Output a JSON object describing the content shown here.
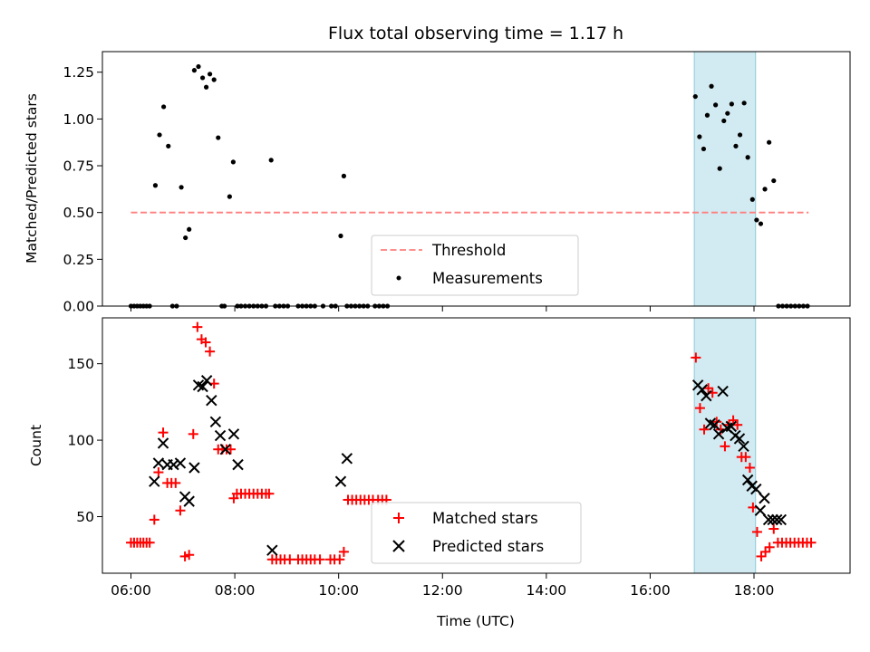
{
  "chart_data": [
    {
      "type": "scatter",
      "title": "Flux total observing time = 1.17 h",
      "ylabel": "Matched/Predicted stars",
      "xlabel": "",
      "xlim": [
        5.45,
        19.85
      ],
      "ylim": [
        0,
        1.36
      ],
      "yticks": [
        0.0,
        0.25,
        0.5,
        0.75,
        1.0,
        1.25
      ],
      "ytick_labels": [
        "0.00",
        "0.25",
        "0.50",
        "0.75",
        "1.00",
        "1.25"
      ],
      "highlight_span": [
        16.85,
        18.03
      ],
      "threshold": {
        "name": "Threshold",
        "value": 0.5,
        "x_range": [
          6.0,
          19.05
        ],
        "color": "#ff7f7f"
      },
      "legend": {
        "placement": "lower-center",
        "entries": [
          "Threshold",
          "Measurements"
        ]
      },
      "series": [
        {
          "name": "Measurements",
          "marker": "dot",
          "color": "#000000",
          "x": [
            6.0,
            6.06,
            6.12,
            6.18,
            6.24,
            6.3,
            6.36,
            6.47,
            6.55,
            6.63,
            6.72,
            6.8,
            6.88,
            6.97,
            7.05,
            7.12,
            7.22,
            7.3,
            7.38,
            7.45,
            7.52,
            7.6,
            7.68,
            7.75,
            7.8,
            7.9,
            7.97,
            8.05,
            8.12,
            8.2,
            8.28,
            8.36,
            8.44,
            8.52,
            8.6,
            8.7,
            8.78,
            8.86,
            8.94,
            9.02,
            9.22,
            9.3,
            9.38,
            9.46,
            9.54,
            9.7,
            9.86,
            9.94,
            10.04,
            10.1,
            10.16,
            10.24,
            10.32,
            10.4,
            10.48,
            10.56,
            10.7,
            10.78,
            10.86,
            10.94,
            16.87,
            16.95,
            17.03,
            17.1,
            17.18,
            17.26,
            17.34,
            17.42,
            17.49,
            17.57,
            17.65,
            17.73,
            17.81,
            17.88,
            17.97,
            18.05,
            18.13,
            18.21,
            18.29,
            18.38,
            18.47,
            18.55,
            18.63,
            18.71,
            18.79,
            18.87,
            18.95,
            19.03
          ],
          "y": [
            0,
            0,
            0,
            0,
            0,
            0,
            0,
            0.645,
            0.915,
            1.065,
            0.855,
            0,
            0,
            0.635,
            0.365,
            0.41,
            1.26,
            1.28,
            1.22,
            1.17,
            1.24,
            1.21,
            0.9,
            0,
            0,
            0.585,
            0.77,
            0,
            0,
            0,
            0,
            0,
            0,
            0,
            0,
            0.78,
            0,
            0,
            0,
            0,
            0,
            0,
            0,
            0,
            0,
            0,
            0,
            0,
            0.375,
            0.695,
            0,
            0,
            0,
            0,
            0,
            0,
            0,
            0,
            0,
            0,
            1.12,
            0.905,
            0.84,
            1.02,
            1.175,
            1.075,
            0.735,
            0.99,
            1.03,
            1.08,
            0.855,
            0.915,
            1.085,
            0.795,
            0.57,
            0.46,
            0.44,
            0.625,
            0.875,
            0.67,
            0,
            0,
            0,
            0,
            0,
            0,
            0,
            0
          ]
        }
      ]
    },
    {
      "type": "scatter",
      "title": "",
      "ylabel": "Count",
      "xlabel": "Time (UTC)",
      "xlim": [
        5.45,
        19.85
      ],
      "ylim": [
        13,
        180
      ],
      "yticks": [
        50,
        100,
        150
      ],
      "ytick_labels": [
        "50",
        "100",
        "150"
      ],
      "xticks": [
        6,
        8,
        10,
        12,
        14,
        16,
        18
      ],
      "xtick_labels": [
        "06:00",
        "08:00",
        "10:00",
        "12:00",
        "14:00",
        "16:00",
        "18:00"
      ],
      "highlight_span": [
        16.85,
        18.03
      ],
      "legend": {
        "placement": "lower-center",
        "entries": [
          "Matched stars",
          "Predicted stars"
        ]
      },
      "series": [
        {
          "name": "Matched stars",
          "marker": "plus",
          "color": "#ff0000",
          "x": [
            6.0,
            6.06,
            6.12,
            6.18,
            6.24,
            6.3,
            6.36,
            6.45,
            6.53,
            6.62,
            6.7,
            6.78,
            6.86,
            6.95,
            7.04,
            7.12,
            7.2,
            7.28,
            7.36,
            7.44,
            7.52,
            7.6,
            7.68,
            7.76,
            7.84,
            7.92,
            7.98,
            8.04,
            8.12,
            8.2,
            8.28,
            8.36,
            8.44,
            8.52,
            8.6,
            8.66,
            8.72,
            8.8,
            8.88,
            8.96,
            9.06,
            9.22,
            9.3,
            9.38,
            9.46,
            9.54,
            9.64,
            9.84,
            9.92,
            10.02,
            10.1,
            10.18,
            10.26,
            10.34,
            10.42,
            10.5,
            10.58,
            10.66,
            10.76,
            10.84,
            10.92,
            16.88,
            16.96,
            17.04,
            17.12,
            17.2,
            17.28,
            17.36,
            17.44,
            17.52,
            17.6,
            17.68,
            17.76,
            17.84,
            17.92,
            17.98,
            18.06,
            18.14,
            18.22,
            18.3,
            18.38,
            18.46,
            18.54,
            18.62,
            18.7,
            18.78,
            18.86,
            18.94,
            19.02,
            19.1
          ],
          "y": [
            33,
            33,
            33,
            33,
            33,
            33,
            33,
            48,
            79,
            105,
            72,
            72,
            72,
            54,
            24,
            25,
            104,
            174,
            166,
            164,
            158,
            137,
            94,
            94,
            94,
            94,
            62,
            65,
            65,
            65,
            65,
            65,
            65,
            65,
            65,
            65,
            22,
            22,
            22,
            22,
            22,
            22,
            22,
            22,
            22,
            22,
            22,
            22,
            22,
            22,
            27,
            61,
            61,
            61,
            61,
            61,
            61,
            61,
            61,
            61,
            61,
            154,
            121,
            107,
            134,
            131,
            112,
            107,
            96,
            110,
            113,
            110,
            89,
            89,
            82,
            56,
            40,
            24,
            27,
            30,
            42,
            33,
            33,
            33,
            33,
            33,
            33,
            33,
            33,
            33
          ]
        },
        {
          "name": "Predicted stars",
          "marker": "x",
          "color": "#000000",
          "x": [
            6.45,
            6.53,
            6.62,
            6.7,
            6.82,
            6.95,
            7.04,
            7.12,
            7.22,
            7.3,
            7.38,
            7.46,
            7.55,
            7.63,
            7.72,
            7.82,
            7.98,
            8.06,
            8.72,
            10.04,
            10.16,
            16.92,
            17.0,
            17.08,
            17.16,
            17.24,
            17.32,
            17.4,
            17.48,
            17.56,
            17.64,
            17.72,
            17.8,
            17.88,
            17.96,
            18.04,
            18.12,
            18.2,
            18.28,
            18.36,
            18.44,
            18.52
          ],
          "y": [
            73,
            85,
            98,
            84,
            84,
            85,
            63,
            60,
            82,
            136,
            135,
            139,
            126,
            112,
            103,
            94,
            104,
            84,
            28,
            73,
            88,
            136,
            133,
            129,
            111,
            110,
            104,
            132,
            108,
            109,
            103,
            101,
            96,
            74,
            70,
            68,
            54,
            62,
            48,
            48,
            48,
            48
          ]
        }
      ]
    }
  ]
}
